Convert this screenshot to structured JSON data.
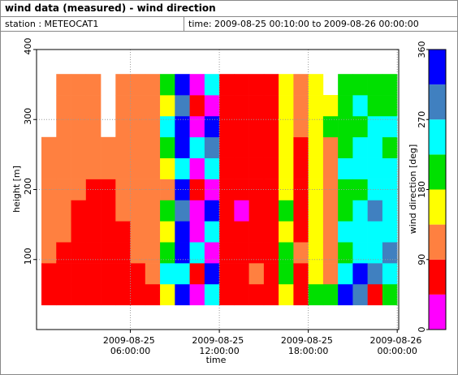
{
  "header": {
    "title": "wind data (measured) - wind direction",
    "station": "station : METEOCAT1",
    "time": "time: 2009-08-25 00:10:00 to 2009-08-26 00:00:00"
  },
  "chart_data": {
    "type": "heatmap",
    "x_label": "time",
    "y_label": "height [m]",
    "colorbar_label": "wind direction [deg]",
    "xlim": [
      -0.33,
      24.1
    ],
    "xticks": [
      {
        "value": 6,
        "label": "2009-08-25 06:00:00"
      },
      {
        "value": 12,
        "label": "2009-08-25 12:00:00"
      },
      {
        "value": 18,
        "label": "2009-08-25 18:00:00"
      },
      {
        "value": 24,
        "label": "2009-08-26 00:00:00"
      }
    ],
    "ylim": [
      0,
      400
    ],
    "yticks": [
      100,
      200,
      300,
      400
    ],
    "grid": true,
    "colorscale": {
      "bounds": [
        0,
        45,
        90,
        135,
        180,
        225,
        270,
        315,
        360
      ],
      "colors": [
        "#ff00ff",
        "#ff0000",
        "#ff8040",
        "#ffff00",
        "#00e000",
        "#00ffff",
        "#4080c0",
        "#0000ff"
      ],
      "ticks": [
        0,
        90,
        180,
        270,
        360
      ]
    },
    "x": [
      0.5,
      1.5,
      2.5,
      3.5,
      4.5,
      5.5,
      6.5,
      7.5,
      8.5,
      9.5,
      10.5,
      11.5,
      12.5,
      13.5,
      14.5,
      15.5,
      16.5,
      17.5,
      18.5,
      19.5,
      20.5,
      21.5,
      22.5,
      23.5
    ],
    "y": [
      50,
      80,
      110,
      140,
      170,
      200,
      230,
      260,
      290,
      320,
      350
    ],
    "values": [
      [
        70,
        70,
        110,
        110,
        110,
        110,
        110,
        110,
        null,
        null,
        null
      ],
      [
        70,
        70,
        70,
        110,
        110,
        110,
        110,
        110,
        110,
        110,
        110
      ],
      [
        70,
        70,
        70,
        70,
        70,
        110,
        110,
        110,
        110,
        110,
        110
      ],
      [
        70,
        70,
        70,
        70,
        70,
        70,
        110,
        110,
        110,
        110,
        110
      ],
      [
        70,
        70,
        70,
        70,
        70,
        70,
        110,
        110,
        null,
        null,
        null
      ],
      [
        70,
        70,
        70,
        70,
        110,
        110,
        110,
        110,
        110,
        110,
        110
      ],
      [
        70,
        70,
        110,
        110,
        110,
        110,
        110,
        110,
        110,
        110,
        110
      ],
      [
        70,
        110,
        110,
        110,
        110,
        110,
        110,
        110,
        110,
        110,
        110
      ],
      [
        160,
        250,
        200,
        160,
        200,
        110,
        160,
        200,
        250,
        160,
        200
      ],
      [
        340,
        250,
        340,
        340,
        290,
        340,
        250,
        340,
        340,
        290,
        340
      ],
      [
        20,
        70,
        250,
        20,
        20,
        70,
        20,
        250,
        20,
        70,
        20
      ],
      [
        250,
        340,
        20,
        250,
        340,
        20,
        250,
        290,
        340,
        20,
        250
      ],
      [
        70,
        70,
        70,
        70,
        70,
        70,
        70,
        70,
        70,
        70,
        70
      ],
      [
        70,
        70,
        70,
        70,
        20,
        70,
        70,
        70,
        70,
        70,
        70
      ],
      [
        70,
        110,
        70,
        70,
        70,
        70,
        70,
        70,
        70,
        70,
        70
      ],
      [
        70,
        70,
        70,
        70,
        70,
        70,
        70,
        70,
        70,
        70,
        70
      ],
      [
        160,
        200,
        200,
        160,
        200,
        160,
        160,
        160,
        160,
        160,
        160
      ],
      [
        70,
        70,
        110,
        70,
        70,
        70,
        70,
        70,
        110,
        110,
        110
      ],
      [
        200,
        160,
        160,
        160,
        160,
        160,
        160,
        160,
        160,
        160,
        160
      ],
      [
        200,
        110,
        110,
        110,
        110,
        110,
        110,
        110,
        200,
        160,
        null
      ],
      [
        340,
        250,
        200,
        250,
        200,
        200,
        250,
        200,
        200,
        200,
        200
      ],
      [
        290,
        340,
        250,
        250,
        250,
        200,
        250,
        250,
        200,
        250,
        200
      ],
      [
        70,
        290,
        250,
        250,
        290,
        250,
        250,
        250,
        250,
        200,
        200
      ],
      [
        200,
        250,
        290,
        250,
        250,
        250,
        250,
        200,
        250,
        200,
        200
      ]
    ]
  }
}
